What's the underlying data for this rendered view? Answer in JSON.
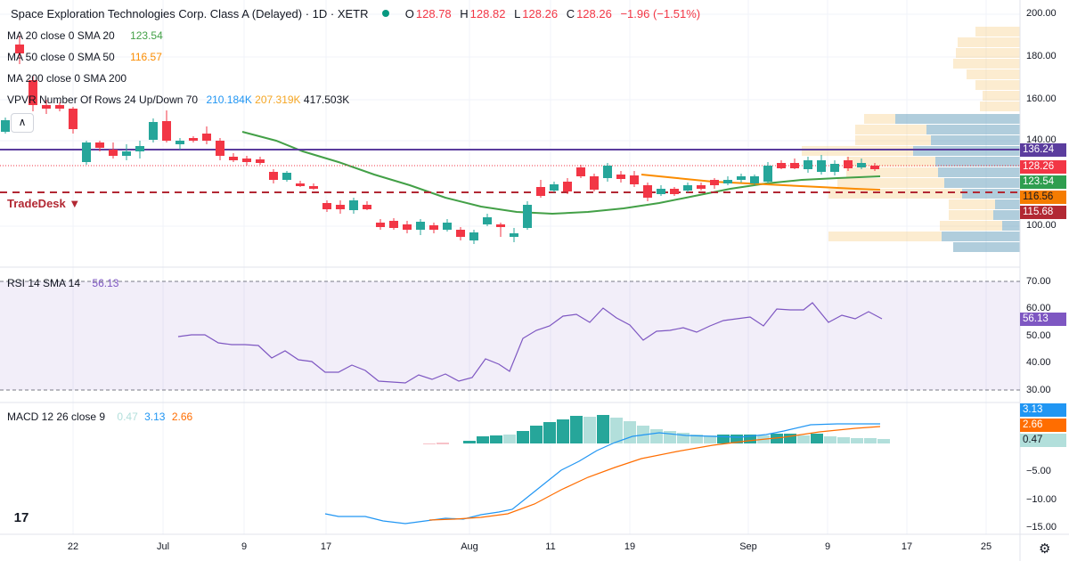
{
  "header": {
    "title": "Space Exploration Technologies Corp. Class A (Delayed) · 1D · XETR",
    "open_label": "O",
    "open": "128.78",
    "high_label": "H",
    "high": "128.82",
    "low_label": "L",
    "low": "128.26",
    "close_label": "C",
    "close": "128.26",
    "change": "−1.96 (−1.51%)"
  },
  "indicators": {
    "ma20_label": "MA 20 close 0 SMA 20",
    "ma20_value": "123.54",
    "ma50_label": "MA 50 close 0 SMA 50",
    "ma50_value": "116.57",
    "ma200_label": "MA 200 close 0 SMA 200",
    "vpvr_label": "VPVR Number Of Rows 24 Up/Down 70",
    "vpvr_up": "210.184K",
    "vpvr_down": "207.319K",
    "vpvr_total": "417.503K",
    "rsi_label": "RSI 14 SMA 14",
    "rsi_value": "56.13",
    "macd_label": "MACD 12 26 close 9",
    "macd_hist": "0.47",
    "macd_line": "3.13",
    "macd_signal": "2.66"
  },
  "marker_label": "TradeDesk ▼",
  "collapse_icon": "chevron-up-icon",
  "price_axis": [
    "200.00",
    "180.00",
    "160.00",
    "140.00",
    "100.00"
  ],
  "price_badges": [
    {
      "value": "136.24",
      "color": "#5b3d9e"
    },
    {
      "value": "128.26",
      "color": "#f23645"
    },
    {
      "value": "123.54",
      "color": "#2e9e4f"
    },
    {
      "value": "116.56",
      "color": "#f57c00"
    },
    {
      "value": "115.68",
      "color": "#b22833"
    }
  ],
  "rsi_axis": [
    "70.00",
    "60.00",
    "50.00",
    "40.00",
    "30.00"
  ],
  "rsi_badge": "56.13",
  "macd_axis": [
    "−5.00",
    "−10.00",
    "−15.00"
  ],
  "macd_badges": [
    {
      "value": "3.13",
      "color": "#2196f3"
    },
    {
      "value": "2.66",
      "color": "#ff6d00"
    },
    {
      "value": "0.47",
      "color": "#b2dfdb"
    }
  ],
  "time_axis": [
    "22",
    "Jul",
    "9",
    "17",
    "Aug",
    "11",
    "19",
    "Sep",
    "9",
    "17",
    "25"
  ],
  "colors": {
    "up": "#26a69a",
    "down": "#f23645",
    "ma20": "#43a047",
    "ma50": "#fb8c00",
    "hline": "#5b3d9e",
    "rsi": "#7e57c2",
    "macd": "#2196f3",
    "signal": "#ff6d00"
  }
}
